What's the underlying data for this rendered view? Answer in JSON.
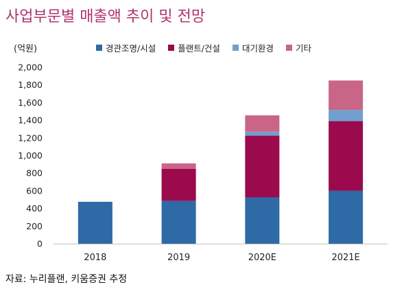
{
  "header": {
    "title": "사업부문별 매출액 추이 및 전망"
  },
  "footer": {
    "source": "자료: 누리플랜, 키움증권 추정"
  },
  "chart_data": {
    "type": "bar",
    "stacked": true,
    "title": "사업부문별 매출액 추이 및 전망",
    "ylabel": "(억원)",
    "xlabel": "",
    "ylim": [
      0,
      2000
    ],
    "yticks": [
      0,
      200,
      400,
      600,
      800,
      1000,
      1200,
      1400,
      1600,
      1800,
      2000
    ],
    "ytick_labels": [
      "0",
      "200",
      "400",
      "600",
      "800",
      "1,000",
      "1,200",
      "1,400",
      "1,600",
      "1,800",
      "2,000"
    ],
    "categories": [
      "2018",
      "2019",
      "2020E",
      "2021E"
    ],
    "legend_position": "top",
    "grid": false,
    "series": [
      {
        "name": "경관조명/시설",
        "color": "#2e6aa6",
        "values": [
          475,
          485,
          525,
          600
        ]
      },
      {
        "name": "플랜트/건설",
        "color": "#9b0a4c",
        "values": [
          0,
          365,
          700,
          790
        ]
      },
      {
        "name": "대기환경",
        "color": "#6fa0cf",
        "values": [
          0,
          0,
          45,
          125
        ]
      },
      {
        "name": "기타",
        "color": "#c96586",
        "values": [
          0,
          60,
          185,
          335
        ]
      }
    ]
  }
}
